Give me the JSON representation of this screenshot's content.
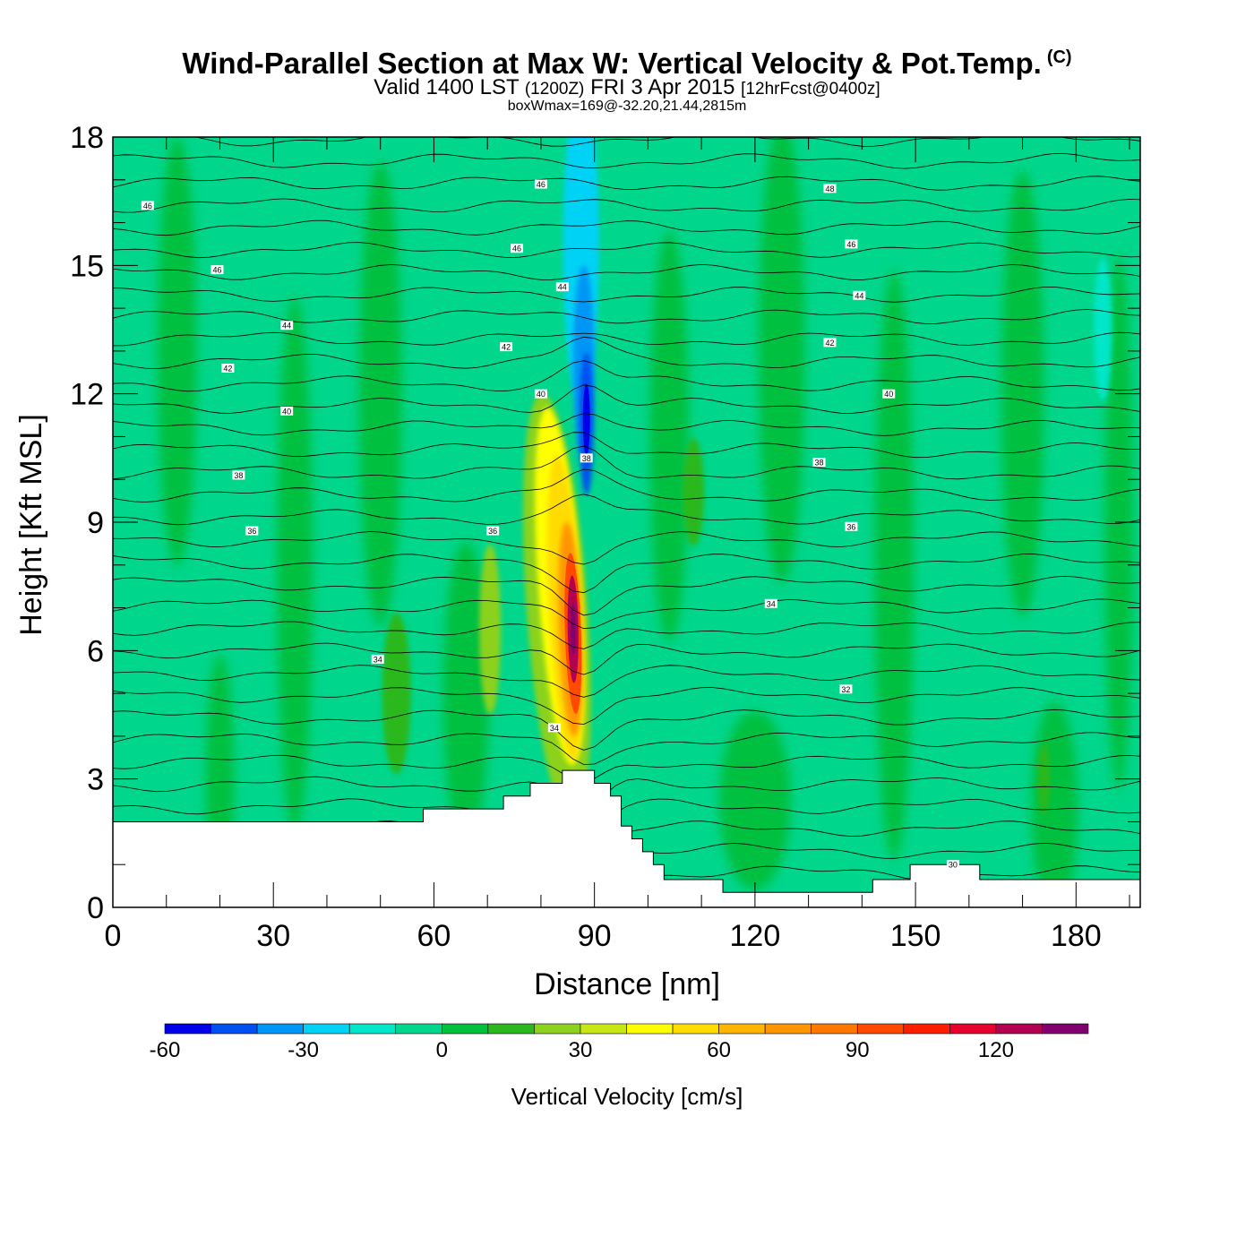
{
  "title": {
    "main": "Wind-Parallel Section at Max W: Vertical Velocity & Pot.Temp.",
    "copyright_mark": "(C)",
    "valid_prefix": "Valid 1400 LST",
    "valid_utc": "(1200Z)",
    "valid_date": "FRI 3 Apr 2015",
    "forecast": "[12hrFcst@0400z]",
    "stat": "boxWmax=169@-32.20,21.44,2815m"
  },
  "chart_data": {
    "type": "heatmap",
    "title": "Wind-Parallel Section at Max W: Vertical Velocity & Pot.Temp.",
    "xlabel": "Distance [nm]",
    "ylabel": "Height [Kft MSL]",
    "xlim": [
      0,
      192
    ],
    "ylim": [
      0,
      18
    ],
    "xticks": [
      0,
      30,
      60,
      90,
      120,
      150,
      180
    ],
    "yticks": [
      0,
      3,
      6,
      9,
      12,
      15,
      18
    ],
    "terrain_profile": [
      [
        0,
        2
      ],
      [
        58,
        2
      ],
      [
        58,
        2.3
      ],
      [
        73,
        2.3
      ],
      [
        73,
        2.6
      ],
      [
        78,
        2.6
      ],
      [
        78,
        2.9
      ],
      [
        84,
        2.9
      ],
      [
        84,
        3.2
      ],
      [
        90,
        3.2
      ],
      [
        90,
        2.9
      ],
      [
        93,
        2.9
      ],
      [
        93,
        2.6
      ],
      [
        95,
        2.6
      ],
      [
        95,
        1.9
      ],
      [
        97,
        1.9
      ],
      [
        97,
        1.6
      ],
      [
        99,
        1.6
      ],
      [
        99,
        1.3
      ],
      [
        101,
        1.3
      ],
      [
        101,
        1.0
      ],
      [
        103,
        1.0
      ],
      [
        103,
        0.65
      ],
      [
        114,
        0.65
      ],
      [
        114,
        0.35
      ],
      [
        142,
        0.35
      ],
      [
        142,
        0.65
      ],
      [
        149,
        0.65
      ],
      [
        149,
        1.0
      ],
      [
        162,
        1.0
      ],
      [
        162,
        0.65
      ],
      [
        192,
        0.65
      ]
    ],
    "max_w_core": {
      "x": 86,
      "y": 6.5,
      "value_cm_s": 169
    },
    "min_w_core": {
      "x": 88,
      "y": 11.5,
      "value_cm_s": -55
    },
    "theta_contour_labels": [
      {
        "value": "46",
        "x": 6.5,
        "y": 16.4
      },
      {
        "value": "46",
        "x": 19.5,
        "y": 14.9
      },
      {
        "value": "44",
        "x": 32.5,
        "y": 13.6
      },
      {
        "value": "42",
        "x": 21.5,
        "y": 12.6
      },
      {
        "value": "40",
        "x": 32.5,
        "y": 11.6
      },
      {
        "value": "38",
        "x": 23.5,
        "y": 10.1
      },
      {
        "value": "36",
        "x": 26,
        "y": 8.8
      },
      {
        "value": "34",
        "x": 49.5,
        "y": 5.8
      },
      {
        "value": "46",
        "x": 80,
        "y": 16.9
      },
      {
        "value": "46",
        "x": 75.5,
        "y": 15.4
      },
      {
        "value": "44",
        "x": 84,
        "y": 14.5
      },
      {
        "value": "42",
        "x": 73.5,
        "y": 13.1
      },
      {
        "value": "40",
        "x": 80,
        "y": 12.0
      },
      {
        "value": "38",
        "x": 88.5,
        "y": 10.5
      },
      {
        "value": "36",
        "x": 71,
        "y": 8.8
      },
      {
        "value": "34",
        "x": 82.5,
        "y": 4.2
      },
      {
        "value": "48",
        "x": 134,
        "y": 16.8
      },
      {
        "value": "46",
        "x": 138,
        "y": 15.5
      },
      {
        "value": "44",
        "x": 139.5,
        "y": 14.3
      },
      {
        "value": "42",
        "x": 134,
        "y": 13.2
      },
      {
        "value": "40",
        "x": 145,
        "y": 12.0
      },
      {
        "value": "38",
        "x": 132,
        "y": 10.4
      },
      {
        "value": "36",
        "x": 138,
        "y": 8.9
      },
      {
        "value": "34",
        "x": 123,
        "y": 7.1
      },
      {
        "value": "32",
        "x": 137,
        "y": 5.1
      },
      {
        "value": "30",
        "x": 157,
        "y": 1.0
      }
    ],
    "colorbar": {
      "title": "Vertical Velocity [cm/s]",
      "levels": [
        -60,
        -50,
        -40,
        -30,
        -20,
        -10,
        0,
        10,
        20,
        30,
        40,
        50,
        60,
        70,
        80,
        90,
        100,
        110,
        120,
        130,
        140
      ],
      "colors": [
        "#0000e8",
        "#0050f0",
        "#0096f5",
        "#00d2f5",
        "#00e6c8",
        "#00d68c",
        "#00c040",
        "#2ab81e",
        "#8cd21e",
        "#c8e614",
        "#ffff00",
        "#ffdc00",
        "#ffb400",
        "#ff9600",
        "#ff7800",
        "#ff4a00",
        "#ff1e00",
        "#e6002d",
        "#b40050",
        "#82006e"
      ],
      "tick_labels": [
        "-60",
        "-30",
        "0",
        "30",
        "60",
        "90",
        "120"
      ],
      "tick_values": [
        -60,
        -30,
        0,
        30,
        60,
        90,
        120
      ]
    }
  }
}
